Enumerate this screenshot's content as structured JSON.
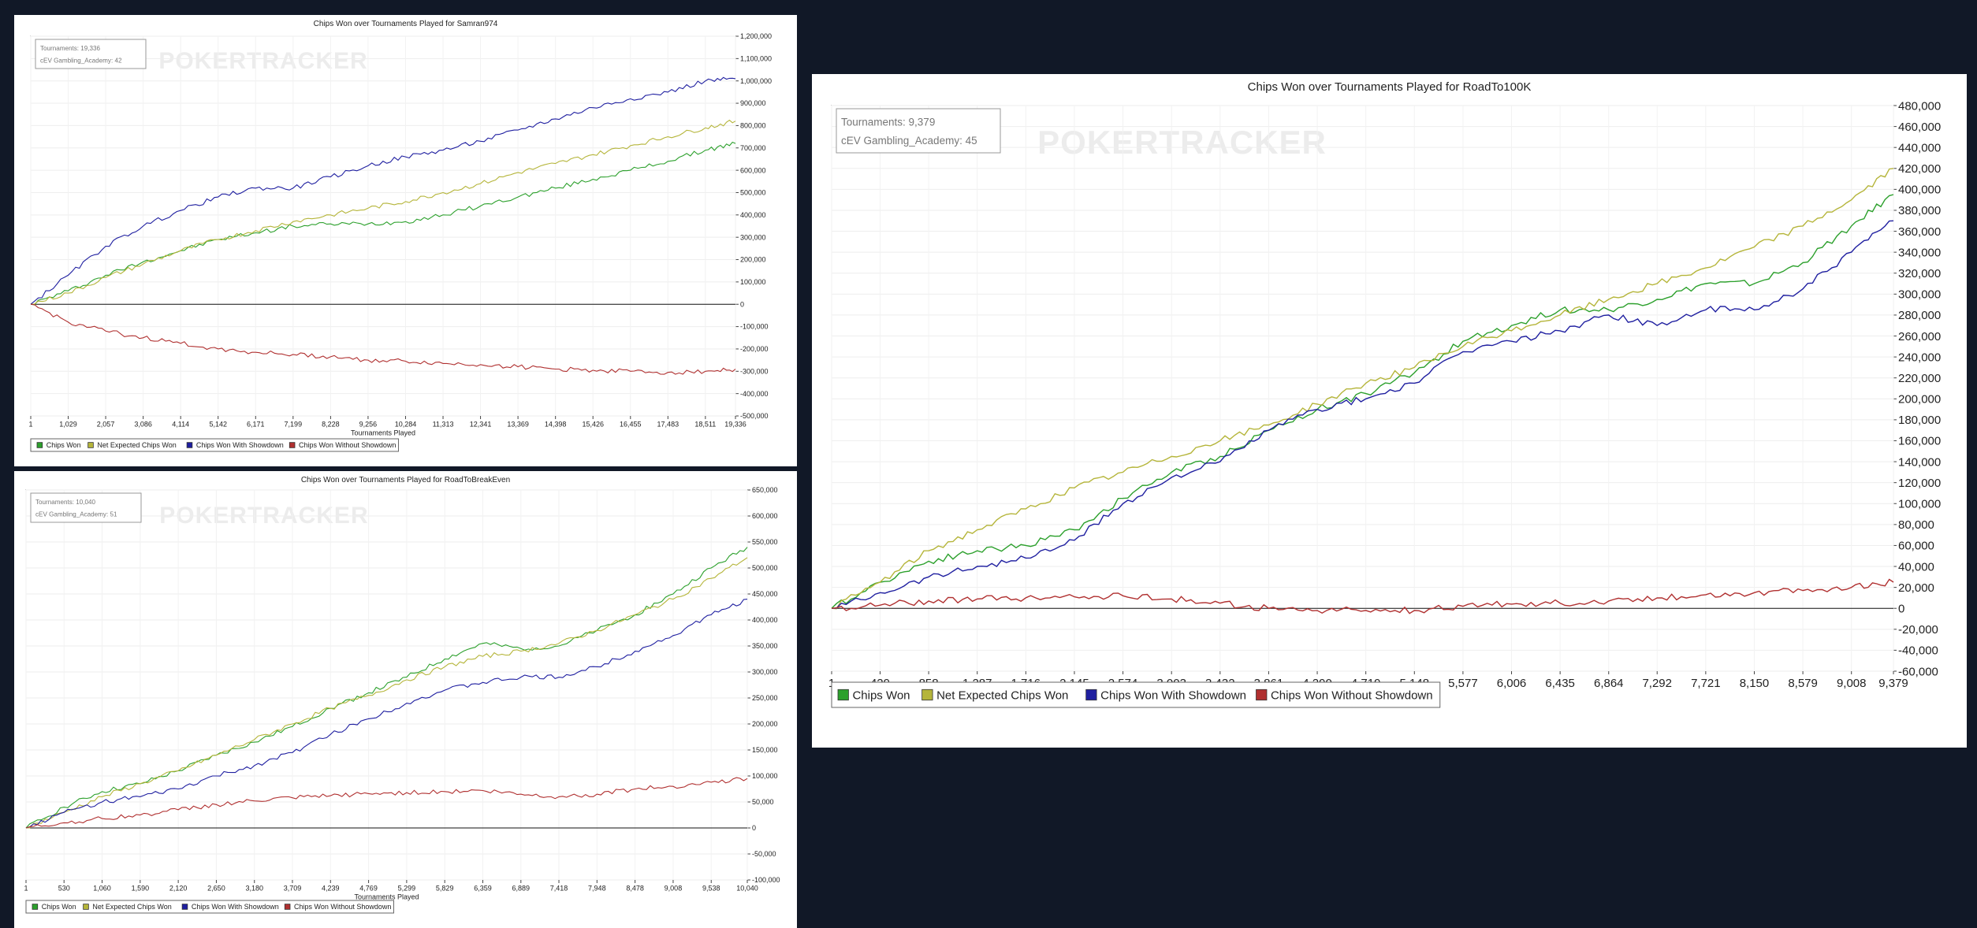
{
  "colors": {
    "background": "#111827",
    "chips_won": "#2ca02c",
    "net_expected": "#b5b53a",
    "with_showdown": "#1f1fa0",
    "without_showdown": "#b03030"
  },
  "chart_data": [
    {
      "type": "line",
      "title": "Chips Won over Tournaments Played for Samran974",
      "watermark": "POKERTRACKER",
      "stats": [
        "Tournaments: 19,336",
        "cEV Gambling_Academy: 42"
      ],
      "xlabel": "Tournaments Played",
      "ylabel": "",
      "grid": true,
      "legend_position": "bottom-left",
      "xlim": [
        1,
        19336
      ],
      "ylim": [
        -500000,
        1200000
      ],
      "x_ticks": [
        "1",
        "1,029",
        "2,057",
        "3,086",
        "4,114",
        "5,142",
        "6,171",
        "7,199",
        "8,228",
        "9,256",
        "10,284",
        "11,313",
        "12,341",
        "13,369",
        "14,398",
        "15,426",
        "16,455",
        "17,483",
        "18,511",
        "19,336"
      ],
      "y_ticks": [
        "-500,000",
        "-400,000",
        "-300,000",
        "-200,000",
        "-100,000",
        "0",
        "100,000",
        "200,000",
        "300,000",
        "400,000",
        "500,000",
        "600,000",
        "700,000",
        "800,000",
        "900,000",
        "1,000,000",
        "1,100,000",
        "1,200,000"
      ],
      "x": [
        1,
        1029,
        2057,
        3086,
        4114,
        5142,
        6171,
        7199,
        8228,
        9256,
        10284,
        11313,
        12341,
        13369,
        14398,
        15426,
        16455,
        17483,
        18511,
        19336
      ],
      "series": [
        {
          "name": "Chips Won",
          "values": [
            0,
            60000,
            130000,
            190000,
            240000,
            290000,
            320000,
            350000,
            360000,
            360000,
            370000,
            400000,
            440000,
            480000,
            520000,
            560000,
            600000,
            640000,
            690000,
            720000
          ]
        },
        {
          "name": "Net Expected Chips Won",
          "values": [
            0,
            50000,
            120000,
            180000,
            240000,
            290000,
            330000,
            370000,
            400000,
            430000,
            460000,
            500000,
            540000,
            590000,
            630000,
            670000,
            710000,
            750000,
            790000,
            820000
          ]
        },
        {
          "name": "Chips Won With Showdown",
          "values": [
            0,
            130000,
            260000,
            350000,
            420000,
            480000,
            520000,
            520000,
            570000,
            620000,
            660000,
            690000,
            730000,
            780000,
            830000,
            880000,
            920000,
            950000,
            1000000,
            1010000
          ]
        },
        {
          "name": "Chips Won Without Showdown",
          "values": [
            0,
            -80000,
            -120000,
            -150000,
            -175000,
            -200000,
            -215000,
            -225000,
            -235000,
            -250000,
            -255000,
            -265000,
            -270000,
            -280000,
            -290000,
            -295000,
            -300000,
            -305000,
            -300000,
            -290000
          ]
        }
      ]
    },
    {
      "type": "line",
      "title": "Chips Won over Tournaments Played for RoadToBreakEven",
      "watermark": "POKERTRACKER",
      "stats": [
        "Tournaments: 10,040",
        "cEV Gambling_Academy: 51"
      ],
      "xlabel": "Tournaments Played",
      "ylabel": "",
      "grid": true,
      "legend_position": "bottom-left",
      "xlim": [
        1,
        10040
      ],
      "ylim": [
        -100000,
        650000
      ],
      "x_ticks": [
        "1",
        "530",
        "1,060",
        "1,590",
        "2,120",
        "2,650",
        "3,180",
        "3,709",
        "4,239",
        "4,769",
        "5,299",
        "5,829",
        "6,359",
        "6,889",
        "7,418",
        "7,948",
        "8,478",
        "9,008",
        "9,538",
        "10,040"
      ],
      "y_ticks": [
        "-100,000",
        "-50,000",
        "0",
        "50,000",
        "100,000",
        "150,000",
        "200,000",
        "250,000",
        "300,000",
        "350,000",
        "400,000",
        "450,000",
        "500,000",
        "550,000",
        "600,000",
        "650,000"
      ],
      "x": [
        1,
        530,
        1060,
        1590,
        2120,
        2650,
        3180,
        3709,
        4239,
        4769,
        5299,
        5829,
        6359,
        6889,
        7418,
        7948,
        8478,
        9008,
        9538,
        10040
      ],
      "series": [
        {
          "name": "Chips Won",
          "values": [
            0,
            40000,
            70000,
            85000,
            110000,
            140000,
            165000,
            195000,
            230000,
            260000,
            290000,
            325000,
            355000,
            345000,
            350000,
            380000,
            410000,
            450000,
            500000,
            540000
          ]
        },
        {
          "name": "Net Expected Chips Won",
          "values": [
            0,
            30000,
            60000,
            85000,
            110000,
            140000,
            170000,
            200000,
            230000,
            255000,
            285000,
            310000,
            330000,
            340000,
            355000,
            380000,
            410000,
            440000,
            480000,
            520000
          ]
        },
        {
          "name": "Chips Won With Showdown",
          "values": [
            0,
            30000,
            50000,
            60000,
            75000,
            100000,
            120000,
            145000,
            180000,
            210000,
            240000,
            265000,
            280000,
            290000,
            290000,
            310000,
            340000,
            370000,
            410000,
            440000
          ]
        },
        {
          "name": "Chips Won Without Showdown",
          "values": [
            0,
            10000,
            18000,
            25000,
            35000,
            45000,
            52000,
            58000,
            62000,
            66000,
            68000,
            70000,
            72000,
            65000,
            60000,
            65000,
            75000,
            80000,
            88000,
            95000
          ]
        }
      ]
    },
    {
      "type": "line",
      "title": "Chips Won over Tournaments Played for RoadTo100K",
      "watermark": "POKERTRACKER",
      "stats": [
        "Tournaments: 9,379",
        "cEV Gambling_Academy: 45"
      ],
      "xlabel": "Tournaments Played",
      "ylabel": "",
      "grid": true,
      "legend_position": "bottom-left",
      "xlim": [
        1,
        9379
      ],
      "ylim": [
        -60000,
        480000
      ],
      "x_ticks": [
        "1",
        "429",
        "858",
        "1,287",
        "1,716",
        "2,145",
        "2,574",
        "3,003",
        "3,432",
        "3,861",
        "4,290",
        "4,719",
        "5,148",
        "5,577",
        "6,006",
        "6,435",
        "6,864",
        "7,292",
        "7,721",
        "8,150",
        "8,579",
        "9,008",
        "9,379"
      ],
      "y_ticks": [
        "-60,000",
        "-40,000",
        "-20,000",
        "0",
        "20,000",
        "40,000",
        "60,000",
        "80,000",
        "100,000",
        "120,000",
        "140,000",
        "160,000",
        "180,000",
        "200,000",
        "220,000",
        "240,000",
        "260,000",
        "280,000",
        "300,000",
        "320,000",
        "340,000",
        "360,000",
        "380,000",
        "400,000",
        "420,000",
        "440,000",
        "460,000",
        "480,000"
      ],
      "x": [
        1,
        429,
        858,
        1287,
        1716,
        2145,
        2574,
        3003,
        3432,
        3861,
        4290,
        4719,
        5148,
        5577,
        6006,
        6435,
        6864,
        7292,
        7721,
        8150,
        8579,
        9008,
        9379
      ],
      "series": [
        {
          "name": "Chips Won",
          "values": [
            0,
            25000,
            45000,
            55000,
            60000,
            75000,
            105000,
            130000,
            145000,
            170000,
            190000,
            205000,
            225000,
            255000,
            270000,
            285000,
            285000,
            295000,
            310000,
            310000,
            330000,
            365000,
            395000
          ]
        },
        {
          "name": "Net Expected Chips Won",
          "values": [
            0,
            25000,
            55000,
            75000,
            95000,
            115000,
            130000,
            145000,
            160000,
            175000,
            195000,
            215000,
            230000,
            250000,
            265000,
            280000,
            295000,
            310000,
            325000,
            345000,
            365000,
            390000,
            420000
          ]
        },
        {
          "name": "Chips Won With Showdown",
          "values": [
            0,
            15000,
            30000,
            40000,
            48000,
            65000,
            100000,
            125000,
            140000,
            170000,
            190000,
            200000,
            215000,
            245000,
            255000,
            265000,
            280000,
            270000,
            285000,
            285000,
            305000,
            340000,
            370000
          ]
        },
        {
          "name": "Chips Won Without Showdown",
          "values": [
            0,
            3000,
            7000,
            9000,
            10000,
            11000,
            12000,
            9000,
            5000,
            0,
            -2000,
            -2000,
            -2000,
            2000,
            4000,
            5000,
            7000,
            10000,
            13000,
            15000,
            17000,
            20000,
            25000
          ]
        }
      ]
    }
  ]
}
